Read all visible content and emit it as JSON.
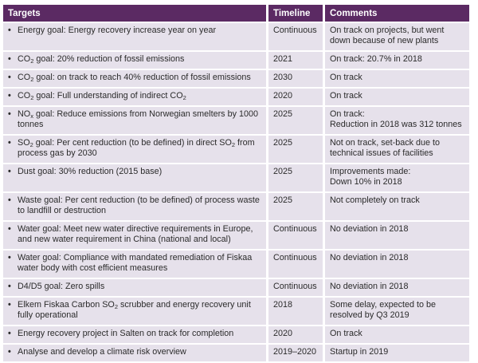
{
  "headers": {
    "targets": "Targets",
    "timeline": "Timeline",
    "comments": "Comments"
  },
  "bullet": "•",
  "rows": [
    {
      "target": "Energy goal: Energy recovery increase year on year",
      "timeline": "Continuous",
      "comment": "On track on projects, but went down because of new plants"
    },
    {
      "target_html": "CO<sub>2</sub> goal: 20% reduction of fossil emissions",
      "target": "CO2 goal: 20% reduction of fossil emissions",
      "timeline": "2021",
      "comment": "On track: 20.7% in 2018"
    },
    {
      "target_html": "CO<sub>2</sub> goal: on track to reach 40% reduction of fossil emissions",
      "target": "CO2 goal: on track to reach 40% reduction of fossil emissions",
      "timeline": "2030",
      "comment": "On track"
    },
    {
      "target_html": "CO<sub>2</sub> goal: Full understanding of indirect CO<sub>2</sub>",
      "target": "CO2 goal: Full understanding of indirect CO2",
      "timeline": "2020",
      "comment": "On track"
    },
    {
      "target_html": "NO<sub>x</sub> goal: Reduce emissions from Norwegian smelters by 1000 tonnes",
      "target": "NOx goal: Reduce emissions from Norwegian smelters by 1000 tonnes",
      "timeline": "2025",
      "comment_lines": [
        "On track:",
        "Reduction in 2018 was 312 tonnes"
      ]
    },
    {
      "target_html": "SO<sub>2</sub> goal: Per cent reduction (to be defined) in direct SO<sub>2</sub> from process gas by 2030",
      "target": "SO2 goal: Per cent reduction (to be defined) in direct SO2 from process gas by 2030",
      "timeline": "2025",
      "comment": "Not on track, set-back due to technical issues of facilities"
    },
    {
      "target": "Dust goal: 30% reduction (2015 base)",
      "timeline": "2025",
      "comment_lines": [
        "Improvements made:",
        "Down 10% in 2018"
      ]
    },
    {
      "target": "Waste goal: Per cent reduction (to be defined) of process waste to landfill or destruction",
      "timeline": "2025",
      "comment": "Not completely on track"
    },
    {
      "target": "Water goal: Meet new water directive requirements in Europe, and new water requirement in China (national and local)",
      "timeline": "Continuous",
      "comment": "No deviation in 2018"
    },
    {
      "target": "Water goal: Compliance with mandated remediation of Fiskaa water body with cost efficient measures",
      "timeline": "Continuous",
      "comment": "No deviation in 2018"
    },
    {
      "target": "D4/D5 goal: Zero spills",
      "timeline": "Continuous",
      "comment": "No deviation in 2018"
    },
    {
      "target_html": "Elkem Fiskaa Carbon SO<sub>2</sub> scrubber and energy recovery unit fully operational",
      "target": "Elkem Fiskaa Carbon SO2 scrubber and energy recovery unit fully operational",
      "timeline": "2018",
      "comment": "Some delay, expected to be resolved by Q3 2019"
    },
    {
      "target": "Energy recovery project in Salten on track for completion",
      "timeline": "2020",
      "comment": "On track"
    },
    {
      "target": "Analyse and develop a climate risk overview",
      "timeline": "2019–2020",
      "comment": "Startup in 2019"
    }
  ],
  "colors": {
    "header_bg": "#5b2a63",
    "row_bg": "#e6e1eb",
    "text": "#2b2b2b"
  }
}
